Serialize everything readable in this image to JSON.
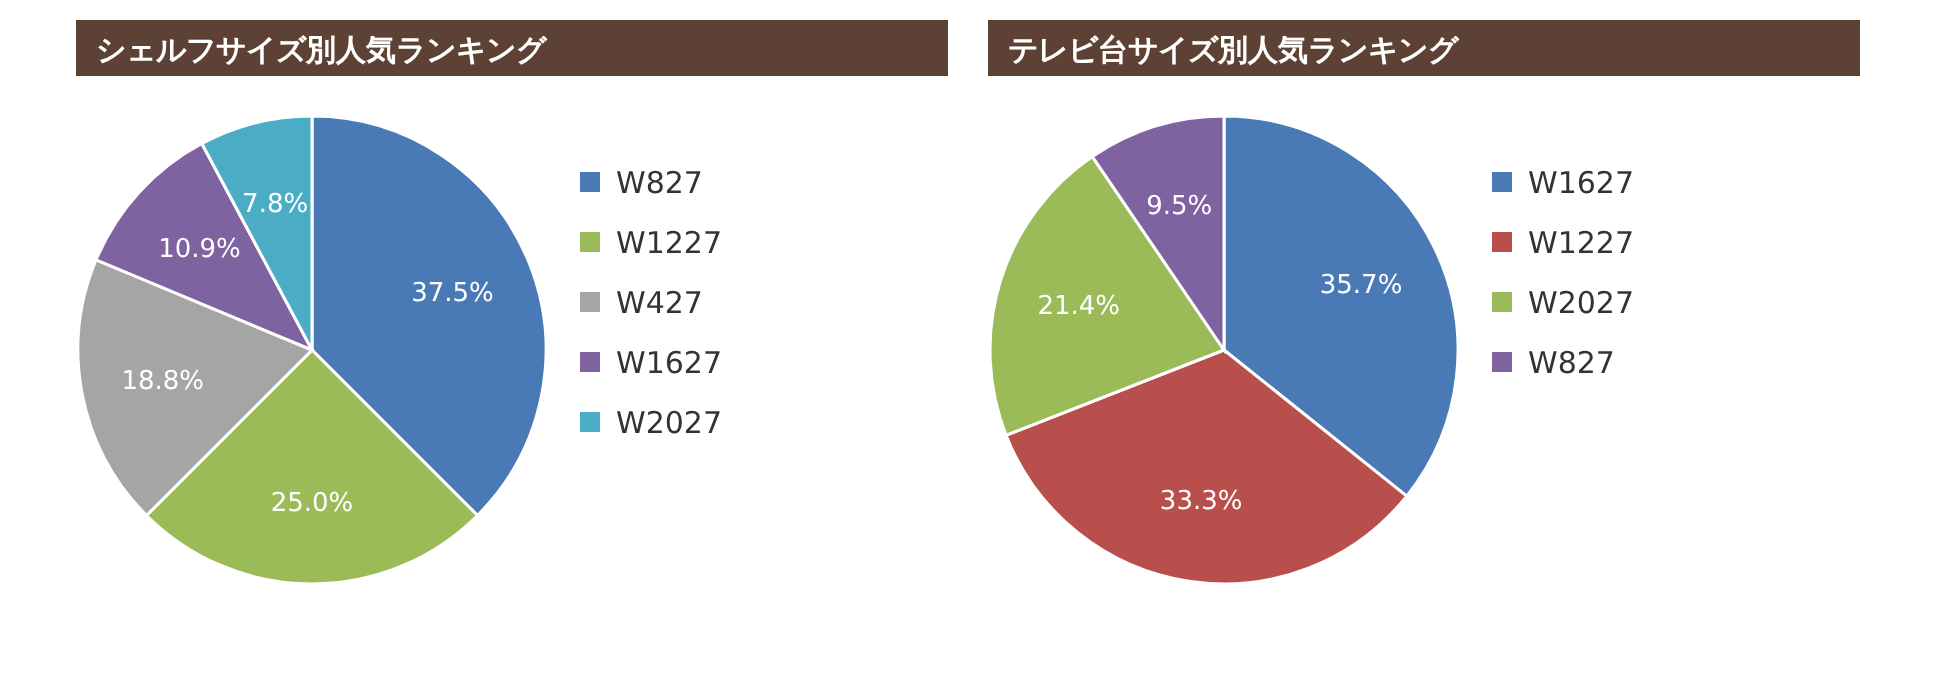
{
  "chart_data": [
    {
      "type": "pie",
      "title": "シェルフサイズ別人気ランキング",
      "categories": [
        "W827",
        "W1227",
        "W427",
        "W1627",
        "W2027"
      ],
      "values": [
        37.5,
        25.0,
        18.8,
        10.9,
        7.8
      ],
      "value_labels": [
        "37.5%",
        "25.0%",
        "18.8%",
        "10.9%",
        "7.8%"
      ],
      "colors": [
        "#4a7ab5",
        "#9bbb59",
        "#a5a5a5",
        "#7f62a0",
        "#4bacc6"
      ],
      "legend": "right"
    },
    {
      "type": "pie",
      "title": "テレビ台サイズ別人気ランキング",
      "categories": [
        "W1627",
        "W1227",
        "W2027",
        "W827"
      ],
      "values": [
        35.7,
        33.3,
        21.4,
        9.5
      ],
      "value_labels": [
        "35.7%",
        "33.3%",
        "21.4%",
        "9.5%"
      ],
      "colors": [
        "#4a7ab5",
        "#b94f4c",
        "#9bbb59",
        "#7f62a0"
      ],
      "legend": "right"
    }
  ]
}
